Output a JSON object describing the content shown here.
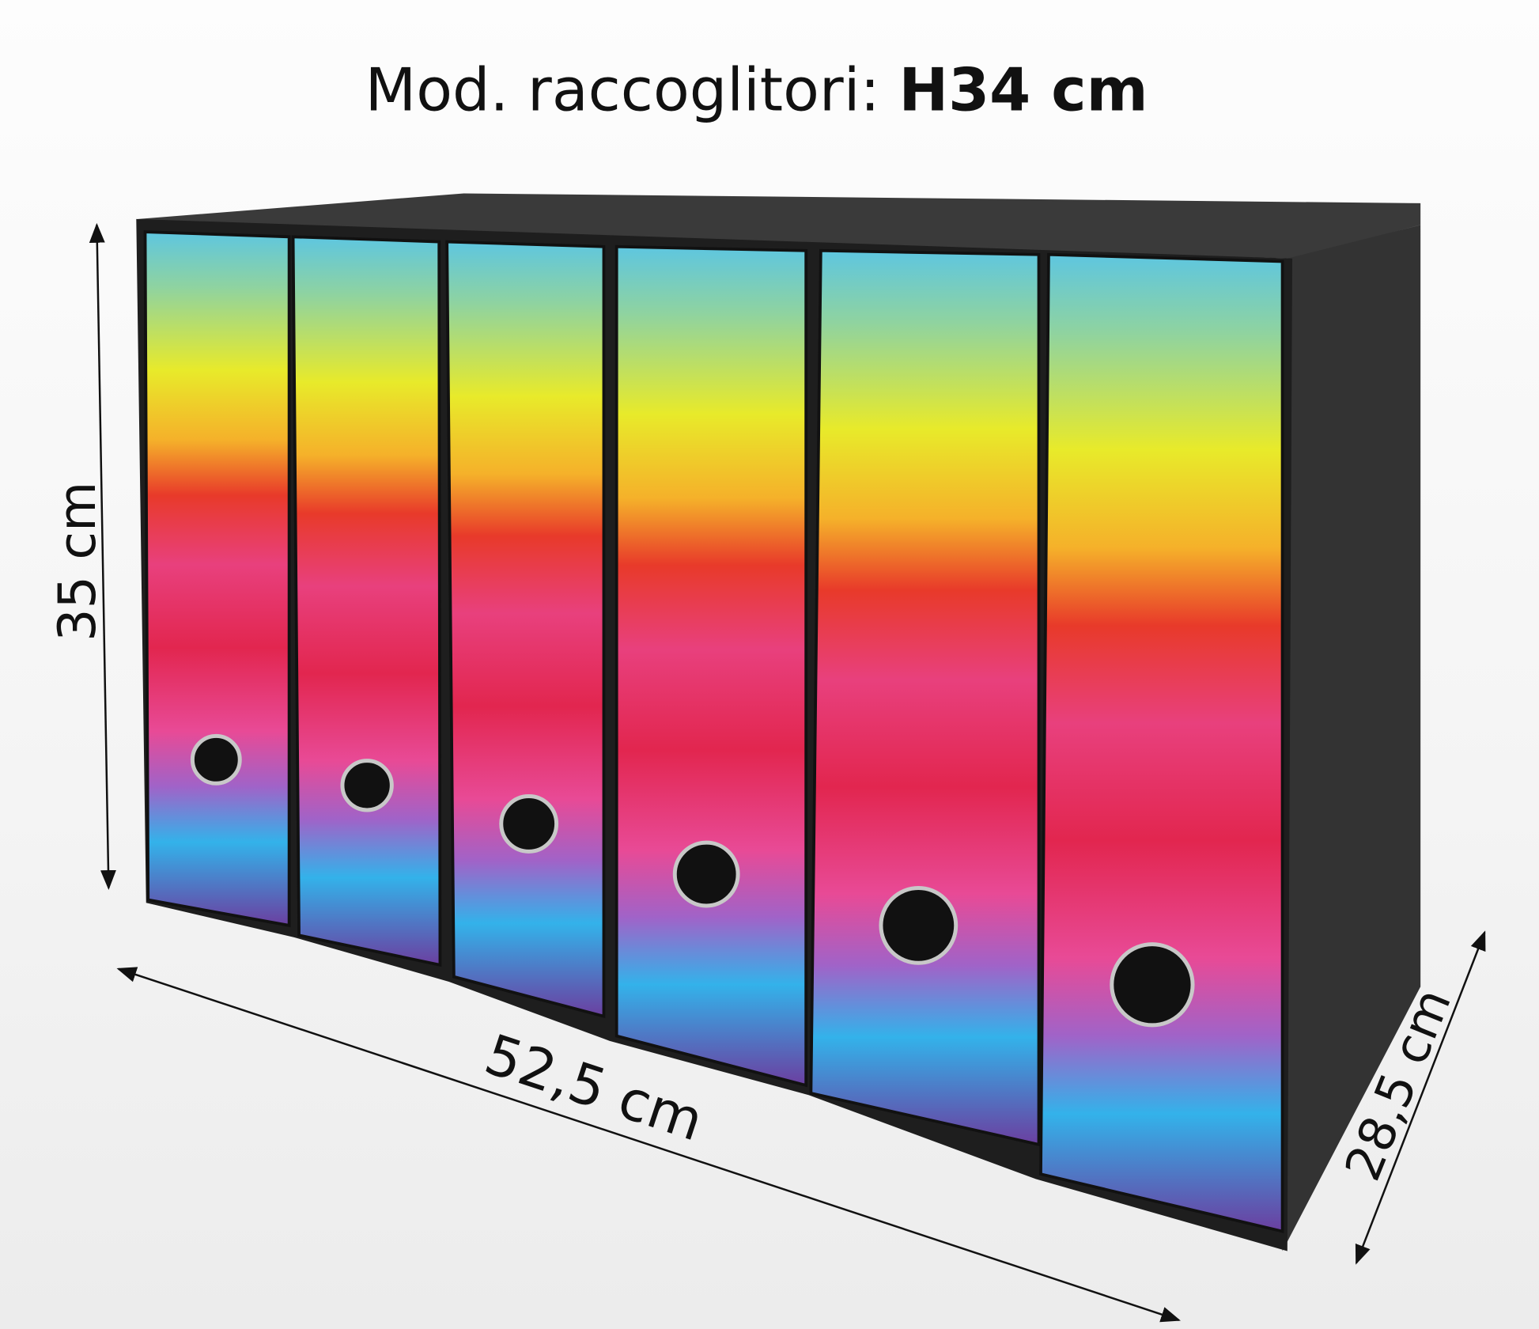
{
  "title": {
    "prefix": "Mod. raccoglitori: ",
    "bold": "H34 cm"
  },
  "dimensions": {
    "height": "35 cm",
    "width": "52,5 cm",
    "depth": "28,5 cm"
  },
  "binder_count": 6,
  "colors": {
    "box": "#2b2b2b",
    "stripes": [
      "#5ec6e0",
      "#e8ea2a",
      "#f5a623",
      "#e2262f",
      "#e8337a",
      "#b24bb0",
      "#33b2ea",
      "#6b3fa0"
    ]
  }
}
